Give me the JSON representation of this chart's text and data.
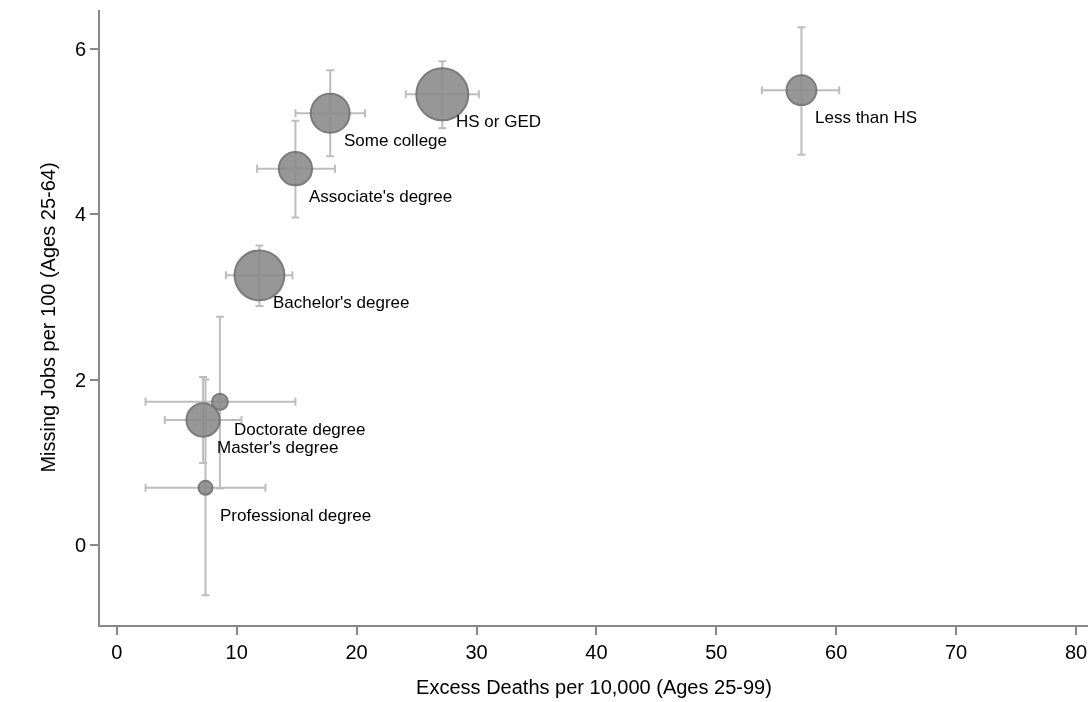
{
  "chart_data": {
    "type": "bubble",
    "xlabel": "Excess Deaths per 10,000 (Ages 25-99)",
    "ylabel": "Missing Jobs per 100 (Ages 25-64)",
    "x": [
      57.1,
      27.15,
      17.8,
      14.9,
      11.9,
      8.6,
      7.2,
      7.4
    ],
    "values": [
      5.5,
      5.45,
      5.22,
      4.55,
      3.26,
      1.73,
      1.51,
      0.69
    ],
    "sizes": [
      0.33,
      1,
      0.56,
      0.41,
      0.92,
      0.095,
      0.41,
      0.072
    ],
    "errors": [
      [
        4.72,
        6.26
      ],
      [
        5.04,
        5.85
      ],
      [
        4.7,
        5.74
      ],
      [
        3.96,
        5.13
      ],
      [
        2.89,
        3.62
      ],
      [
        0.68,
        2.76
      ],
      [
        0.99,
        2.03
      ],
      [
        -0.61,
        2.0
      ]
    ],
    "xerrors": [
      [
        53.8,
        60.25
      ],
      [
        24.1,
        30.2
      ],
      [
        14.9,
        20.7
      ],
      [
        11.7,
        18.2
      ],
      [
        9.1,
        14.65
      ],
      [
        2.4,
        14.9
      ],
      [
        4.0,
        10.4
      ],
      [
        2.4,
        12.4
      ]
    ],
    "color": "#8c8c8c",
    "annotations": [
      {
        "text": "Less than HS",
        "x": 57.1,
        "y": 5.5
      },
      {
        "text": "HS or GED",
        "x": 27.15,
        "y": 5.45
      },
      {
        "text": "Some college",
        "x": 17.8,
        "y": 5.22
      },
      {
        "text": "Associate's degree",
        "x": 14.9,
        "y": 4.55
      },
      {
        "text": "Bachelor's degree",
        "x": 11.9,
        "y": 3.26
      },
      {
        "text": "Doctorate degree",
        "x": 8.6,
        "y": 1.73
      },
      {
        "text": "Master's degree",
        "x": 7.2,
        "y": 1.51
      },
      {
        "text": "Professional degree",
        "x": 7.4,
        "y": 0.69
      }
    ],
    "xlim": [
      -1.4,
      81
    ],
    "ylim": [
      -0.97,
      6.47
    ],
    "xticks": [
      0,
      10,
      20,
      30,
      40,
      50,
      60,
      70,
      80
    ],
    "yticks": [
      0,
      2,
      4,
      6
    ],
    "grid": false
  }
}
